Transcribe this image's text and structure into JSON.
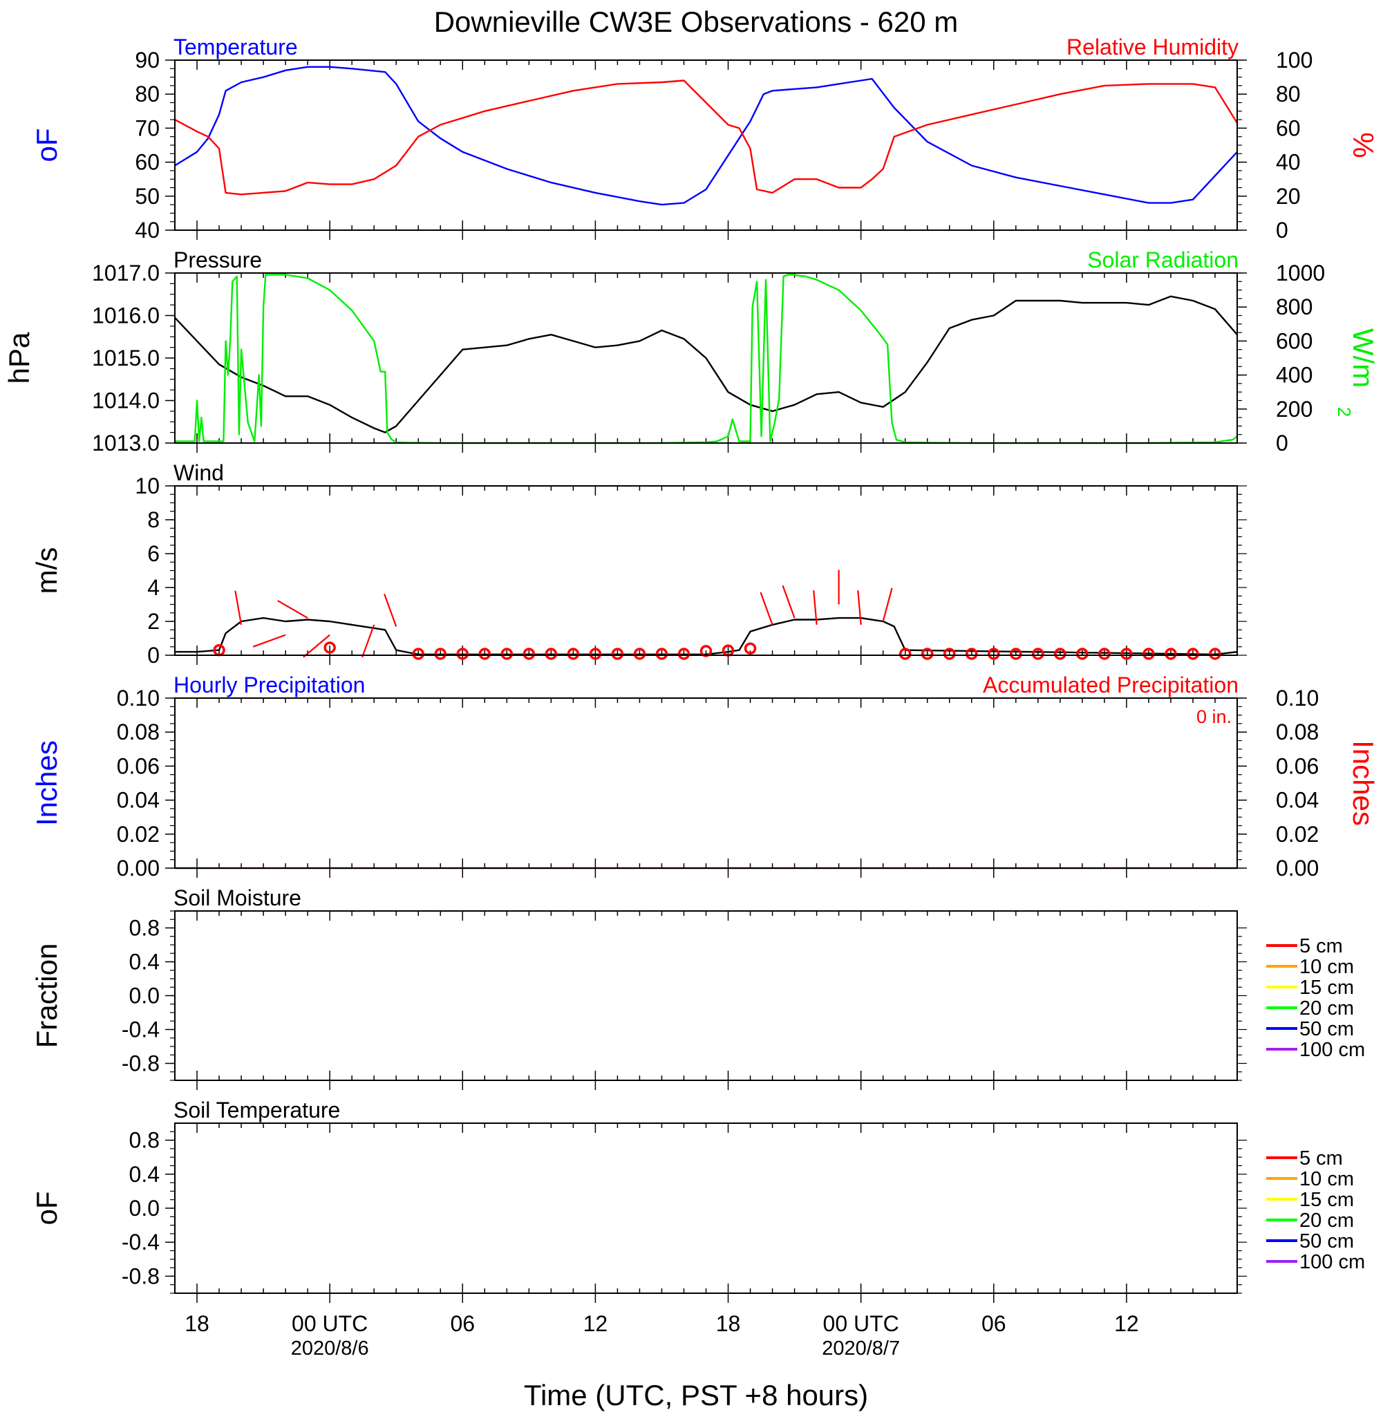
{
  "title": "Downieville CW3E Observations - 620 m",
  "time_axis": {
    "xlabel": "Time (UTC, PST +8 hours)",
    "start_utc": "2020-08-05 17:00",
    "end_utc": "2020-08-07 17:00",
    "ticks": [
      {
        "hour": 1,
        "label": "18"
      },
      {
        "hour": 7,
        "label": "00 UTC",
        "date": "2020/8/6"
      },
      {
        "hour": 13,
        "label": "06"
      },
      {
        "hour": 19,
        "label": "12"
      },
      {
        "hour": 25,
        "label": "18"
      },
      {
        "hour": 31,
        "label": "00 UTC",
        "date": "2020/8/7"
      },
      {
        "hour": 37,
        "label": "06"
      },
      {
        "hour": 43,
        "label": "12"
      }
    ]
  },
  "chart_data": [
    {
      "type": "line",
      "panel": "temperature_humidity",
      "left_title": "Temperature",
      "right_title": "Relative Humidity",
      "ylabel_left": "oF",
      "ylabel_right": "%",
      "ylim_left": [
        40,
        90
      ],
      "ylim_right": [
        0,
        100
      ],
      "yticks_left": [
        "90",
        "80",
        "70",
        "60",
        "50",
        "40"
      ],
      "yticks_right": [
        "100",
        "80",
        "60",
        "40",
        "20",
        "0"
      ],
      "colors": {
        "left": "#0000ff",
        "right": "#ff0000"
      },
      "series": [
        {
          "name": "Temperature",
          "axis": "left",
          "color": "#0000ff",
          "x": [
            0,
            1,
            1.5,
            2,
            2.3,
            3,
            4,
            5,
            6,
            7,
            8,
            9.5,
            10,
            11,
            12,
            13,
            15,
            17,
            19,
            21,
            22,
            23,
            24,
            25,
            26,
            26.6,
            27,
            28,
            29,
            30,
            31,
            31.5,
            32.5,
            34,
            36,
            38,
            40,
            42,
            44,
            45,
            46,
            48
          ],
          "y": [
            59,
            63,
            67,
            74,
            81,
            83.5,
            85,
            87,
            88,
            88,
            87.5,
            86.5,
            83,
            72,
            67,
            63,
            58,
            54,
            51,
            48.5,
            47.5,
            48,
            52,
            62,
            72,
            80,
            81,
            81.5,
            82,
            83,
            84,
            84.5,
            76,
            66,
            59,
            55.5,
            53,
            50.5,
            48,
            48,
            49,
            63
          ]
        },
        {
          "name": "Relative Humidity",
          "axis": "right",
          "color": "#ff0000",
          "x": [
            0,
            1,
            1.5,
            2,
            2.3,
            3,
            5,
            6,
            7,
            8,
            9,
            10,
            11,
            12,
            14,
            16,
            18,
            20,
            22,
            23,
            24,
            25,
            25.5,
            26,
            26.3,
            27,
            28,
            29,
            30,
            31,
            31.5,
            32,
            32.5,
            34,
            36,
            38,
            40,
            42,
            44,
            46,
            47,
            48
          ],
          "y": [
            65,
            58,
            55,
            48,
            22,
            21,
            23,
            28,
            27,
            27,
            30,
            38,
            55,
            62,
            70,
            76,
            82,
            86,
            87,
            88,
            75,
            62,
            60,
            48,
            24,
            22,
            30,
            30,
            25,
            25,
            30,
            36,
            55,
            62,
            68,
            74,
            80,
            85,
            86,
            86,
            84,
            63
          ]
        }
      ]
    },
    {
      "type": "line",
      "panel": "pressure_solar",
      "left_title": "Pressure",
      "right_title": "Solar Radiation",
      "ylabel_left": "hPa",
      "ylabel_right": "W/m",
      "ylabel_right_superscript": "2",
      "ylim_left": [
        1013.0,
        1017.0
      ],
      "ylim_right": [
        0,
        1000
      ],
      "yticks_left": [
        "1017.0",
        "1016.0",
        "1015.0",
        "1014.0",
        "1013.0"
      ],
      "yticks_right": [
        "1000",
        "800",
        "600",
        "400",
        "200",
        "0"
      ],
      "colors": {
        "left": "#000000",
        "right": "#00ee00"
      },
      "series": [
        {
          "name": "Pressure",
          "axis": "left",
          "color": "#000000",
          "x": [
            0,
            1,
            2,
            3,
            4,
            5,
            6,
            7,
            8,
            9,
            9.5,
            10,
            11,
            12,
            13,
            15,
            16,
            17,
            18,
            19,
            20,
            21,
            22,
            23,
            24,
            25,
            26,
            27,
            28,
            29,
            30,
            31,
            32,
            33,
            34,
            35,
            36,
            37,
            38,
            39,
            40,
            41,
            42,
            43,
            44,
            45,
            46,
            47,
            48
          ],
          "y": [
            1015.95,
            1015.4,
            1014.85,
            1014.55,
            1014.35,
            1014.1,
            1014.1,
            1013.9,
            1013.6,
            1013.35,
            1013.25,
            1013.4,
            1014.0,
            1014.6,
            1015.2,
            1015.3,
            1015.45,
            1015.55,
            1015.4,
            1015.25,
            1015.3,
            1015.4,
            1015.65,
            1015.45,
            1015.0,
            1014.2,
            1013.9,
            1013.75,
            1013.9,
            1014.15,
            1014.2,
            1013.95,
            1013.85,
            1014.2,
            1014.9,
            1015.7,
            1015.9,
            1016.0,
            1016.35,
            1016.35,
            1016.35,
            1016.3,
            1016.3,
            1016.3,
            1016.25,
            1016.45,
            1016.35,
            1016.15,
            1015.55
          ]
        },
        {
          "name": "Solar Radiation",
          "axis": "right",
          "color": "#00ee00",
          "x": [
            0,
            0.9,
            1,
            1.1,
            1.2,
            1.3,
            1.5,
            2.2,
            2.3,
            2.4,
            2.5,
            2.6,
            2.8,
            2.9,
            3.0,
            3.3,
            3.6,
            3.8,
            3.9,
            4.0,
            4.1,
            5,
            6,
            7,
            8,
            9,
            9.3,
            9.5,
            9.6,
            9.8,
            10,
            10.5,
            12,
            16,
            20,
            22,
            24,
            24.5,
            25,
            25.2,
            25.5,
            26,
            26.1,
            26.3,
            26.5,
            26.7,
            26.9,
            27.1,
            27.3,
            27.5,
            27.7,
            27.9,
            28.5,
            29,
            30,
            31,
            31.8,
            32.2,
            32.4,
            32.6,
            33,
            34,
            36,
            40,
            44,
            47,
            47.8,
            48
          ],
          "y": [
            10,
            10,
            250,
            10,
            150,
            10,
            10,
            10,
            600,
            400,
            600,
            950,
            980,
            50,
            550,
            120,
            10,
            400,
            100,
            800,
            990,
            990,
            970,
            900,
            780,
            600,
            420,
            420,
            60,
            20,
            5,
            2,
            0,
            0,
            0,
            0,
            5,
            10,
            40,
            140,
            10,
            10,
            800,
            950,
            40,
            960,
            10,
            120,
            260,
            980,
            990,
            990,
            980,
            960,
            900,
            780,
            650,
            580,
            120,
            20,
            5,
            2,
            0,
            0,
            0,
            5,
            20,
            40
          ]
        }
      ]
    },
    {
      "type": "line",
      "panel": "wind",
      "left_title": "Wind",
      "ylabel_left": "m/s",
      "ylim_left": [
        0,
        10
      ],
      "yticks_left": [
        "10",
        "8",
        "6",
        "4",
        "2",
        "0"
      ],
      "series": [
        {
          "name": "Wind",
          "axis": "left",
          "color": "#000000",
          "x": [
            0,
            1,
            2,
            2.3,
            3,
            4,
            5,
            6,
            7,
            8,
            9,
            9.5,
            10,
            11,
            24,
            25,
            25.5,
            26,
            27,
            28,
            29,
            30,
            31,
            32,
            32.5,
            33,
            47,
            48
          ],
          "y": [
            0.2,
            0.2,
            0.3,
            1.3,
            2.0,
            2.2,
            2.0,
            2.1,
            2.0,
            1.8,
            1.6,
            1.5,
            0.3,
            0.05,
            0.05,
            0.2,
            0.3,
            1.4,
            1.8,
            2.1,
            2.1,
            2.2,
            2.2,
            2.0,
            1.7,
            0.3,
            0.05,
            0.2
          ]
        }
      ],
      "barb_color": "#ff0000",
      "barbs": [
        {
          "x": 3,
          "speed": 1.8,
          "dir": 350
        },
        {
          "x": 5,
          "speed": 1.2,
          "dir": 250
        },
        {
          "x": 6,
          "speed": 2.2,
          "dir": 300
        },
        {
          "x": 7,
          "speed": 1.2,
          "dir": 230
        },
        {
          "x": 9,
          "speed": 1.8,
          "dir": 200
        },
        {
          "x": 10,
          "speed": 1.7,
          "dir": 340
        },
        {
          "x": 27,
          "speed": 1.8,
          "dir": 340
        },
        {
          "x": 28,
          "speed": 2.2,
          "dir": 340
        },
        {
          "x": 29,
          "speed": 1.8,
          "dir": 355
        },
        {
          "x": 30,
          "speed": 3.0,
          "dir": 0
        },
        {
          "x": 31,
          "speed": 1.8,
          "dir": 355
        },
        {
          "x": 32,
          "speed": 2.0,
          "dir": 15
        }
      ],
      "calm_markers": [
        2,
        7,
        11,
        12,
        13,
        14,
        15,
        16,
        17,
        18,
        19,
        20,
        21,
        22,
        23,
        24,
        25,
        26,
        33,
        34,
        35,
        36,
        37,
        38,
        39,
        40,
        41,
        42,
        43,
        44,
        45,
        46,
        47
      ],
      "calm_marker_levels": {
        "2": 0.3,
        "7": 0.45,
        "24": 0.25,
        "25": 0.28,
        "26": 0.4
      }
    },
    {
      "type": "line",
      "panel": "precipitation",
      "left_title": "Hourly Precipitation",
      "right_title": "Accumulated Precipitation",
      "total_label": "0 in.",
      "ylabel_left": "Inches",
      "ylabel_right": "Inches",
      "ylim_left": [
        0,
        0.1
      ],
      "ylim_right": [
        0,
        0.1
      ],
      "yticks_left": [
        "0.10",
        "0.08",
        "0.06",
        "0.04",
        "0.02",
        "0.00"
      ],
      "yticks_right": [
        "0.10",
        "0.08",
        "0.06",
        "0.04",
        "0.02",
        "0.00"
      ],
      "colors": {
        "left": "#0000ff",
        "right": "#ff0000"
      },
      "series": [
        {
          "name": "Accumulated Precipitation",
          "axis": "right",
          "color": "#cc0000",
          "x": [
            0,
            48
          ],
          "y": [
            0,
            0
          ]
        }
      ]
    },
    {
      "type": "line",
      "panel": "soil_moisture",
      "left_title": "Soil Moisture",
      "ylabel_left": "Fraction",
      "ylim_left": [
        -1,
        1
      ],
      "yticks_left": [
        "0.8",
        "0.4",
        "0.0",
        "-0.4",
        "-0.8"
      ],
      "legend": [
        {
          "label": "5 cm",
          "color": "#ff0000"
        },
        {
          "label": "10 cm",
          "color": "#ffa500"
        },
        {
          "label": "15 cm",
          "color": "#ffff00"
        },
        {
          "label": "20 cm",
          "color": "#00ff00"
        },
        {
          "label": "50 cm",
          "color": "#0000ff"
        },
        {
          "label": "100 cm",
          "color": "#a020f0"
        }
      ]
    },
    {
      "type": "line",
      "panel": "soil_temperature",
      "left_title": "Soil Temperature",
      "ylabel_left": "oF",
      "ylim_left": [
        -1,
        1
      ],
      "yticks_left": [
        "0.8",
        "0.4",
        "0.0",
        "-0.4",
        "-0.8"
      ],
      "legend": [
        {
          "label": "5 cm",
          "color": "#ff0000"
        },
        {
          "label": "10 cm",
          "color": "#ffa500"
        },
        {
          "label": "15 cm",
          "color": "#ffff00"
        },
        {
          "label": "20 cm",
          "color": "#00ff00"
        },
        {
          "label": "50 cm",
          "color": "#0000ff"
        },
        {
          "label": "100 cm",
          "color": "#a020f0"
        }
      ]
    }
  ]
}
